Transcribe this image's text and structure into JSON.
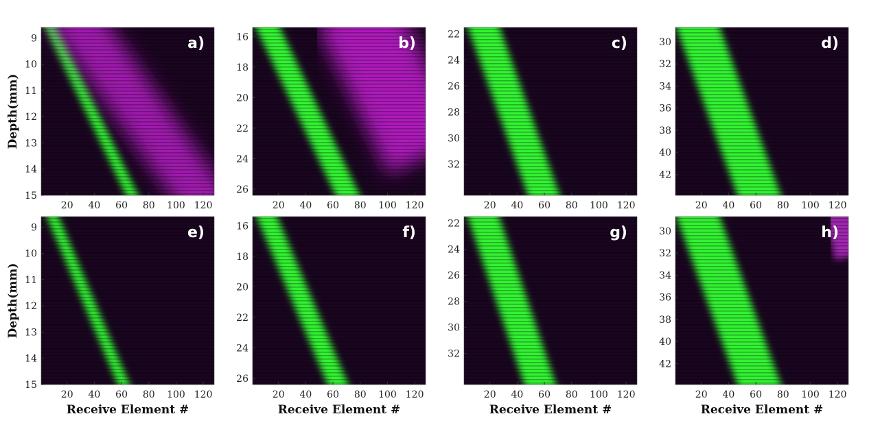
{
  "chart_data": [
    {
      "type": "heatmap",
      "panel_label": "a)",
      "ylabel": "Depth(mm)",
      "xlabel": "",
      "xlim": [
        1,
        128
      ],
      "xticks": [
        20,
        40,
        60,
        80,
        100,
        120
      ],
      "ylim": [
        8.6,
        15.0
      ],
      "yticks": [
        9,
        10,
        11,
        12,
        13,
        14,
        15
      ],
      "series": [
        {
          "color": "#33ff33",
          "line": [
            [
              1,
              8.6
            ],
            [
              75,
              15.0
            ]
          ],
          "width_elements": 8
        },
        {
          "color": "#cc22dd",
          "line": [
            [
              20,
              8.6
            ],
            [
              128,
              15.0
            ]
          ],
          "width_elements": 35
        }
      ]
    },
    {
      "type": "heatmap",
      "panel_label": "b)",
      "ylabel": "",
      "xlabel": "",
      "xlim": [
        1,
        128
      ],
      "xticks": [
        20,
        40,
        60,
        80,
        100,
        120
      ],
      "ylim": [
        15.4,
        26.4
      ],
      "yticks": [
        16,
        18,
        20,
        22,
        24,
        26
      ],
      "series": [
        {
          "color": "#33ff33",
          "line": [
            [
              5,
              15.4
            ],
            [
              78,
              26.4
            ]
          ],
          "width_elements": 16
        },
        {
          "color": "#dd22ee",
          "line": [
            [
              75,
              15.4
            ],
            [
              128,
              22.5
            ]
          ],
          "width_elements": 60
        }
      ]
    },
    {
      "type": "heatmap",
      "panel_label": "c)",
      "ylabel": "",
      "xlabel": "",
      "xlim": [
        1,
        128
      ],
      "xticks": [
        20,
        40,
        60,
        80,
        100,
        120
      ],
      "ylim": [
        21.5,
        34.4
      ],
      "yticks": [
        22,
        24,
        26,
        28,
        30,
        32
      ],
      "series": [
        {
          "color": "#33ff33",
          "line": [
            [
              10,
              21.5
            ],
            [
              65,
              34.4
            ]
          ],
          "width_elements": 22
        }
      ]
    },
    {
      "type": "heatmap",
      "panel_label": "d)",
      "ylabel": "",
      "xlabel": "",
      "xlim": [
        1,
        128
      ],
      "xticks": [
        20,
        40,
        60,
        80,
        100,
        120
      ],
      "ylim": [
        28.7,
        43.9
      ],
      "yticks": [
        30,
        32,
        34,
        36,
        38,
        40,
        42
      ],
      "series": [
        {
          "color": "#33ff33",
          "line": [
            [
              12,
              28.7
            ],
            [
              68,
              43.9
            ]
          ],
          "width_elements": 30
        }
      ]
    },
    {
      "type": "heatmap",
      "panel_label": "e)",
      "ylabel": "Depth(mm)",
      "xlabel": "Receive Element #",
      "xlim": [
        1,
        128
      ],
      "xticks": [
        20,
        40,
        60,
        80,
        100,
        120
      ],
      "ylim": [
        8.6,
        15.0
      ],
      "yticks": [
        9,
        10,
        11,
        12,
        13,
        14,
        15
      ],
      "series": [
        {
          "color": "#33ff33",
          "line": [
            [
              3,
              8.6
            ],
            [
              68,
              15.0
            ]
          ],
          "width_elements": 8
        }
      ]
    },
    {
      "type": "heatmap",
      "panel_label": "f)",
      "ylabel": "",
      "xlabel": "Receive Element #",
      "xlim": [
        1,
        128
      ],
      "xticks": [
        20,
        40,
        60,
        80,
        100,
        120
      ],
      "ylim": [
        15.4,
        26.4
      ],
      "yticks": [
        16,
        18,
        20,
        22,
        24,
        26
      ],
      "series": [
        {
          "color": "#33ff33",
          "line": [
            [
              5,
              15.4
            ],
            [
              70,
              26.4
            ]
          ],
          "width_elements": 14
        }
      ]
    },
    {
      "type": "heatmap",
      "panel_label": "g)",
      "ylabel": "",
      "xlabel": "Receive Element #",
      "xlim": [
        1,
        128
      ],
      "xticks": [
        20,
        40,
        60,
        80,
        100,
        120
      ],
      "ylim": [
        21.5,
        34.4
      ],
      "yticks": [
        22,
        24,
        26,
        28,
        30,
        32
      ],
      "series": [
        {
          "color": "#33ff33",
          "line": [
            [
              10,
              21.5
            ],
            [
              62,
              34.4
            ]
          ],
          "width_elements": 22
        }
      ]
    },
    {
      "type": "heatmap",
      "panel_label": "h)",
      "ylabel": "",
      "xlabel": "Receive Element #",
      "xlim": [
        1,
        128
      ],
      "xticks": [
        20,
        40,
        60,
        80,
        100,
        120
      ],
      "ylim": [
        28.7,
        43.9
      ],
      "yticks": [
        30,
        32,
        34,
        36,
        38,
        40,
        42
      ],
      "series": [
        {
          "color": "#33ff33",
          "line": [
            [
              12,
              28.7
            ],
            [
              68,
              43.9
            ]
          ],
          "width_elements": 30
        },
        {
          "color": "#cc33dd",
          "line": [
            [
              118,
              28.7
            ],
            [
              128,
              30.5
            ]
          ],
          "width_elements": 20
        }
      ]
    }
  ],
  "colors": {
    "background": "#1a0520",
    "stripe": "#330b3d"
  }
}
